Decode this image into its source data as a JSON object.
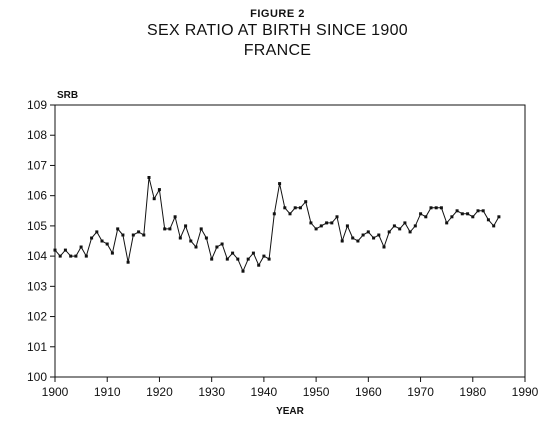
{
  "figure_label": "FIGURE 2",
  "chart_data": {
    "type": "line",
    "title": "SEX RATIO AT BIRTH SINCE 1900",
    "subtitle": "FRANCE",
    "xlabel": "YEAR",
    "ylabel": "SRB",
    "xlim": [
      1900,
      1990
    ],
    "ylim": [
      100,
      109
    ],
    "x_ticks": [
      1900,
      1910,
      1920,
      1930,
      1940,
      1950,
      1960,
      1970,
      1980,
      1990
    ],
    "y_ticks": [
      100,
      101,
      102,
      103,
      104,
      105,
      106,
      107,
      108,
      109
    ],
    "grid": false,
    "marker": "square",
    "series": [
      {
        "x": [
          1900,
          1901,
          1902,
          1903,
          1904,
          1905,
          1906,
          1907,
          1908,
          1909,
          1910,
          1911,
          1912,
          1913,
          1914,
          1915,
          1916,
          1917,
          1918,
          1919,
          1920,
          1921,
          1922,
          1923,
          1924,
          1925,
          1926,
          1927,
          1928,
          1929,
          1930,
          1931,
          1932,
          1933,
          1934,
          1935,
          1936,
          1937,
          1938,
          1939,
          1940,
          1941,
          1942,
          1943,
          1944,
          1945,
          1946,
          1947,
          1948,
          1949,
          1950,
          1951,
          1952,
          1953,
          1954,
          1955,
          1956,
          1957,
          1958,
          1959,
          1960,
          1961,
          1962,
          1963,
          1964,
          1965,
          1966,
          1967,
          1968,
          1969,
          1970,
          1971,
          1972,
          1973,
          1974,
          1975,
          1976,
          1977,
          1978,
          1979,
          1980,
          1981,
          1982,
          1983,
          1984,
          1985
        ],
        "values": [
          104.2,
          104.0,
          104.2,
          104.0,
          104.0,
          104.3,
          104.0,
          104.6,
          104.8,
          104.5,
          104.4,
          104.1,
          104.9,
          104.7,
          103.8,
          104.7,
          104.8,
          104.7,
          106.6,
          105.9,
          106.2,
          104.9,
          104.9,
          105.3,
          104.6,
          105.0,
          104.5,
          104.3,
          104.9,
          104.6,
          103.9,
          104.3,
          104.4,
          103.9,
          104.1,
          103.9,
          103.5,
          103.9,
          104.1,
          103.7,
          104.0,
          103.9,
          105.4,
          106.4,
          105.6,
          105.4,
          105.6,
          105.6,
          105.8,
          105.1,
          104.9,
          105.0,
          105.1,
          105.1,
          105.3,
          104.5,
          105.0,
          104.6,
          104.5,
          104.7,
          104.8,
          104.6,
          104.7,
          104.3,
          104.8,
          105.0,
          104.9,
          105.1,
          104.8,
          105.0,
          105.4,
          105.3,
          105.6,
          105.6,
          105.6,
          105.1,
          105.3,
          105.5,
          105.4,
          105.4,
          105.3,
          105.5,
          105.5,
          105.2,
          105.0,
          105.3
        ]
      }
    ]
  }
}
